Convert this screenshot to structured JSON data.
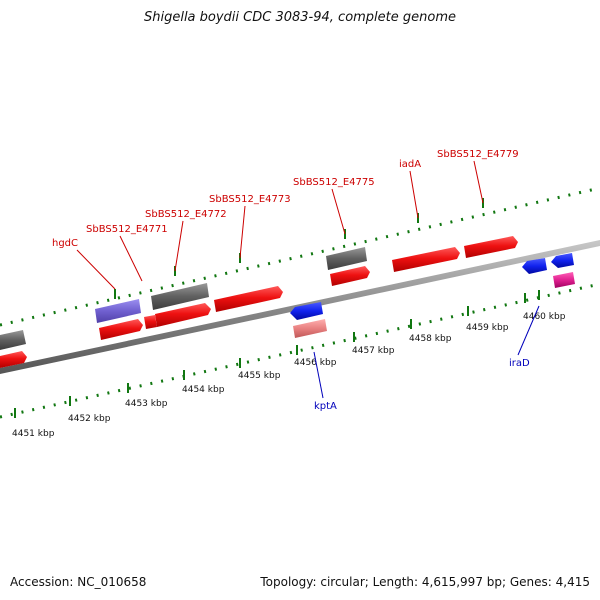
{
  "title": "Shigella boydii CDC 3083-94, complete genome",
  "footer": {
    "accession": "Accession: NC_010658",
    "topology": "Topology: circular; Length: 4,615,997 bp; Genes: 4,415"
  },
  "colors": {
    "forward_gene": "#ee1111",
    "reverse_gene": "#1122ee",
    "pseudo_gene": "#606060",
    "violet_gene": "#7060d0",
    "pink_gene": "#e02090",
    "salmon_gene": "#e88080",
    "backbone": "#888888",
    "tick_green": "#117711",
    "forward_label": "#cc0000",
    "reverse_label": "#0000bb"
  },
  "kbp_ticks": [
    "4451 kbp",
    "4452 kbp",
    "4453 kbp",
    "4454 kbp",
    "4455 kbp",
    "4456 kbp",
    "4457 kbp",
    "4458 kbp",
    "4459 kbp",
    "4460 kbp"
  ],
  "forward_labels": [
    "hgdC",
    "SbBS512_E4771",
    "SbBS512_E4772",
    "SbBS512_E4773",
    "SbBS512_E4775",
    "iadA",
    "SbBS512_E4779"
  ],
  "reverse_labels": [
    "kptA",
    "iraD"
  ]
}
